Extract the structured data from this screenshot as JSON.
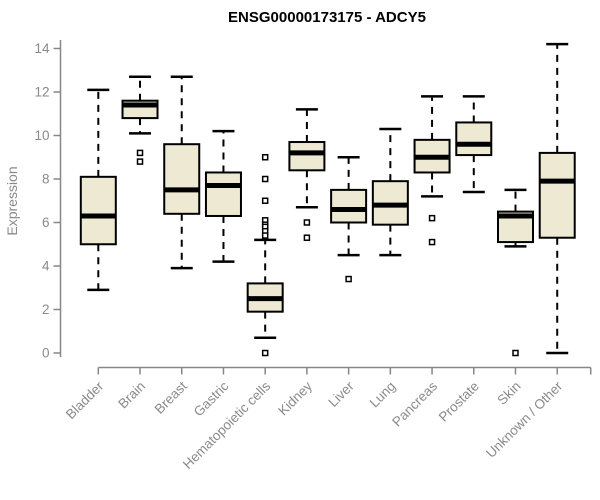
{
  "title": "ENSG00000173175 - ADCY5",
  "colors": {
    "background": "#ffffff",
    "axis": "#878787",
    "tick_label": "#8a8a8a",
    "box_fill": "#EDE9D2",
    "box_stroke": "#000000",
    "title_text": "#000000"
  },
  "y_axis": {
    "label": "Expression",
    "ticks": [
      0,
      2,
      4,
      6,
      8,
      10,
      12,
      14
    ]
  },
  "chart_data": {
    "type": "boxplot",
    "title": "ENSG00000173175 - ADCY5",
    "xlabel": "",
    "ylabel": "Expression",
    "ylim": [
      0,
      14.3
    ],
    "grid": false,
    "legend": "none",
    "categories": [
      "Bladder",
      "Brain",
      "Breast",
      "Gastric",
      "Hematopoietic cells",
      "Kidney",
      "Liver",
      "Lung",
      "Pancreas",
      "Prostate",
      "Skin",
      "Unknown / Other"
    ],
    "series": [
      {
        "category": "Bladder",
        "whisker_low": 2.9,
        "q1": 5.0,
        "median": 6.3,
        "q3": 8.1,
        "whisker_high": 12.1,
        "outliers": []
      },
      {
        "category": "Brain",
        "whisker_low": 10.1,
        "q1": 10.8,
        "median": 11.4,
        "q3": 11.6,
        "whisker_high": 12.7,
        "outliers": [
          9.2,
          8.8
        ]
      },
      {
        "category": "Breast",
        "whisker_low": 3.9,
        "q1": 6.4,
        "median": 7.5,
        "q3": 9.6,
        "whisker_high": 12.7,
        "outliers": []
      },
      {
        "category": "Gastric",
        "whisker_low": 4.2,
        "q1": 6.3,
        "median": 7.7,
        "q3": 8.3,
        "whisker_high": 10.2,
        "outliers": []
      },
      {
        "category": "Hematopoietic cells",
        "whisker_low": 0.7,
        "q1": 1.9,
        "median": 2.5,
        "q3": 3.2,
        "whisker_high": 5.2,
        "outliers": [
          9.0,
          8.0,
          7.0,
          6.1,
          5.9,
          5.8,
          5.6,
          5.4,
          0.0
        ]
      },
      {
        "category": "Kidney",
        "whisker_low": 6.7,
        "q1": 8.4,
        "median": 9.2,
        "q3": 9.7,
        "whisker_high": 11.2,
        "outliers": [
          6.0,
          5.3
        ]
      },
      {
        "category": "Liver",
        "whisker_low": 4.5,
        "q1": 6.0,
        "median": 6.6,
        "q3": 7.5,
        "whisker_high": 9.0,
        "outliers": [
          3.4
        ]
      },
      {
        "category": "Lung",
        "whisker_low": 4.5,
        "q1": 5.9,
        "median": 6.8,
        "q3": 7.9,
        "whisker_high": 10.3,
        "outliers": []
      },
      {
        "category": "Pancreas",
        "whisker_low": 7.2,
        "q1": 8.3,
        "median": 9.0,
        "q3": 9.8,
        "whisker_high": 11.8,
        "outliers": [
          6.2,
          5.1
        ]
      },
      {
        "category": "Prostate",
        "whisker_low": 7.4,
        "q1": 9.1,
        "median": 9.6,
        "q3": 10.6,
        "whisker_high": 11.8,
        "outliers": []
      },
      {
        "category": "Skin",
        "whisker_low": 4.9,
        "q1": 5.1,
        "median": 6.3,
        "q3": 6.5,
        "whisker_high": 7.5,
        "outliers": [
          0.0
        ]
      },
      {
        "category": "Unknown / Other",
        "whisker_low": 0.0,
        "q1": 5.3,
        "median": 7.9,
        "q3": 9.2,
        "whisker_high": 14.2,
        "outliers": []
      }
    ]
  }
}
